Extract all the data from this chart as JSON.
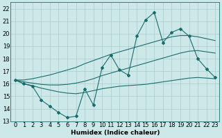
{
  "xlabel": "Humidex (Indice chaleur)",
  "background_color": "#cce8e8",
  "grid_color": "#aacccc",
  "line_color": "#1a6b6b",
  "x_main": [
    0,
    1,
    2,
    3,
    4,
    5,
    6,
    7,
    8,
    9,
    10,
    11,
    12,
    13,
    14,
    15,
    16,
    17,
    18,
    19,
    20,
    21,
    22,
    23
  ],
  "y_main": [
    16.3,
    16.0,
    15.8,
    14.7,
    14.2,
    13.7,
    13.3,
    13.4,
    15.6,
    14.3,
    17.3,
    18.3,
    17.1,
    16.7,
    19.8,
    21.1,
    21.7,
    19.3,
    20.1,
    20.4,
    19.8,
    18.0,
    17.2,
    16.5
  ],
  "y_low": [
    16.3,
    16.0,
    15.85,
    15.65,
    15.5,
    15.35,
    15.25,
    15.2,
    15.3,
    15.45,
    15.6,
    15.7,
    15.8,
    15.85,
    15.9,
    15.95,
    16.05,
    16.15,
    16.25,
    16.35,
    16.45,
    16.5,
    16.45,
    16.4
  ],
  "y_mid": [
    16.3,
    16.15,
    16.05,
    15.95,
    15.9,
    15.9,
    15.95,
    16.05,
    16.2,
    16.4,
    16.65,
    16.85,
    17.05,
    17.25,
    17.45,
    17.65,
    17.85,
    18.05,
    18.25,
    18.45,
    18.6,
    18.65,
    18.55,
    18.45
  ],
  "y_high": [
    16.3,
    16.3,
    16.4,
    16.55,
    16.7,
    16.9,
    17.1,
    17.3,
    17.6,
    17.85,
    18.1,
    18.35,
    18.55,
    18.75,
    18.95,
    19.15,
    19.35,
    19.55,
    19.75,
    19.85,
    19.85,
    19.75,
    19.6,
    19.45
  ],
  "ylim": [
    13,
    22.5
  ],
  "xlim": [
    -0.5,
    23.5
  ],
  "yticks": [
    13,
    14,
    15,
    16,
    17,
    18,
    19,
    20,
    21,
    22
  ],
  "xticks": [
    0,
    1,
    2,
    3,
    4,
    5,
    6,
    7,
    8,
    9,
    10,
    11,
    12,
    13,
    14,
    15,
    16,
    17,
    18,
    19,
    20,
    21,
    22,
    23
  ],
  "marker_size": 2.0,
  "line_width": 0.8,
  "font_size": 6.5
}
